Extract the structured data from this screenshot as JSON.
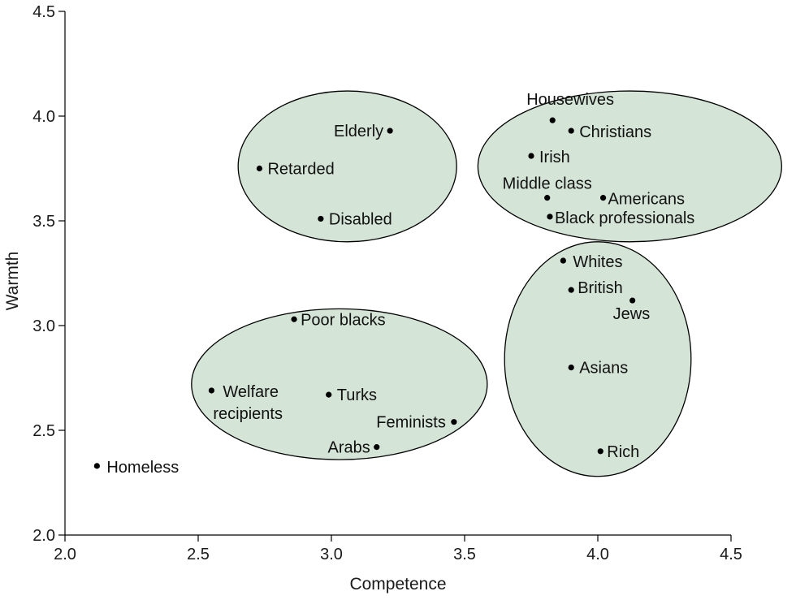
{
  "chart_data": {
    "type": "scatter",
    "xlabel": "Competence",
    "ylabel": "Warmth",
    "xlim": [
      2.0,
      4.5
    ],
    "ylim": [
      2.0,
      4.5
    ],
    "xticks": [
      "2.0",
      "2.5",
      "3.0",
      "3.5",
      "4.0",
      "4.5"
    ],
    "yticks": [
      "2.0",
      "2.5",
      "3.0",
      "3.5",
      "4.0",
      "4.5"
    ],
    "grid": false,
    "cluster_color": "#d4e4d6",
    "points": [
      {
        "label": "Housewives",
        "x": 3.83,
        "y": 3.98
      },
      {
        "label": "Christians",
        "x": 3.9,
        "y": 3.93
      },
      {
        "label": "Irish",
        "x": 3.75,
        "y": 3.81
      },
      {
        "label": "Middle class",
        "x": 3.81,
        "y": 3.61
      },
      {
        "label": "Americans",
        "x": 4.02,
        "y": 3.61
      },
      {
        "label": "Black professionals",
        "x": 3.82,
        "y": 3.52
      },
      {
        "label": "Elderly",
        "x": 3.22,
        "y": 3.93
      },
      {
        "label": "Retarded",
        "x": 2.73,
        "y": 3.75
      },
      {
        "label": "Disabled",
        "x": 2.96,
        "y": 3.51
      },
      {
        "label": "Whites",
        "x": 3.87,
        "y": 3.31
      },
      {
        "label": "British",
        "x": 3.9,
        "y": 3.17
      },
      {
        "label": "Jews",
        "x": 4.13,
        "y": 3.12
      },
      {
        "label": "Asians",
        "x": 3.9,
        "y": 2.8
      },
      {
        "label": "Rich",
        "x": 4.01,
        "y": 2.4
      },
      {
        "label": "Poor blacks",
        "x": 2.86,
        "y": 3.03
      },
      {
        "label": "Welfare recipients",
        "x": 2.55,
        "y": 2.69
      },
      {
        "label": "Turks",
        "x": 2.99,
        "y": 2.67
      },
      {
        "label": "Feminists",
        "x": 3.46,
        "y": 2.54
      },
      {
        "label": "Arabs",
        "x": 3.17,
        "y": 2.42
      },
      {
        "label": "Homeless",
        "x": 2.12,
        "y": 2.33
      }
    ],
    "clusters": [
      {
        "cx": 3.06,
        "cy": 3.76,
        "rx": 0.41,
        "ry": 0.36
      },
      {
        "cx": 4.12,
        "cy": 3.76,
        "rx": 0.57,
        "ry": 0.36
      },
      {
        "cx": 3.03,
        "cy": 2.72,
        "rx": 0.555,
        "ry": 0.36
      },
      {
        "cx": 4.0,
        "cy": 2.84,
        "rx": 0.35,
        "ry": 0.56
      }
    ]
  }
}
